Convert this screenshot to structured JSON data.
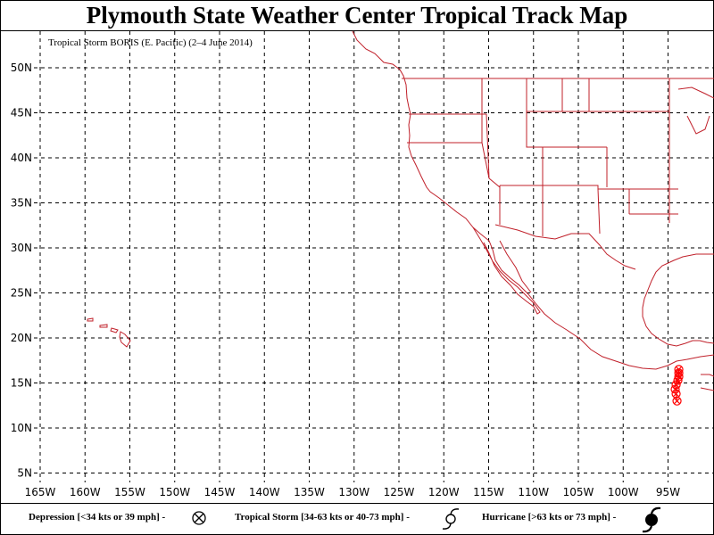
{
  "title": "Plymouth State Weather Center Tropical Track Map",
  "subtitle": "Tropical Storm BORIS (E. Pacific)  (2–4 June 2014)",
  "map": {
    "lat_labels": [
      "50N",
      "45N",
      "40N",
      "35N",
      "30N",
      "25N",
      "20N",
      "15N",
      "10N",
      "5N"
    ],
    "lat_values": [
      50,
      45,
      40,
      35,
      30,
      25,
      20,
      15,
      10,
      5
    ],
    "lon_labels": [
      "165W",
      "160W",
      "155W",
      "150W",
      "145W",
      "140W",
      "135W",
      "130W",
      "125W",
      "120W",
      "115W",
      "110W",
      "105W",
      "100W",
      "95W"
    ],
    "lon_values": [
      -165,
      -160,
      -155,
      -150,
      -145,
      -140,
      -135,
      -130,
      -125,
      -120,
      -115,
      -110,
      -105,
      -100,
      -95
    ],
    "land_color": "#c0202a",
    "track_color": "#ff0000"
  },
  "track": {
    "storm": "BORIS",
    "points": [
      {
        "lat": 13.0,
        "lon": -94.0,
        "symbol": "depression"
      },
      {
        "lat": 13.8,
        "lon": -94.1,
        "symbol": "depression"
      },
      {
        "lat": 14.3,
        "lon": -94.2,
        "symbol": "depression"
      },
      {
        "lat": 14.8,
        "lon": -94.1,
        "symbol": "depression"
      },
      {
        "lat": 15.3,
        "lon": -93.9,
        "symbol": "depression"
      },
      {
        "lat": 15.7,
        "lon": -93.8,
        "symbol": "depression"
      },
      {
        "lat": 16.1,
        "lon": -93.8,
        "symbol": "depression"
      },
      {
        "lat": 16.5,
        "lon": -93.8,
        "symbol": "depression"
      }
    ]
  },
  "legend": {
    "depression": "Depression [<34 kts or 39 mph] -",
    "storm": "Tropical Storm [34-63 kts or 40-73 mph] -",
    "hurricane": "Hurricane [>63 kts or 73 mph] -"
  }
}
